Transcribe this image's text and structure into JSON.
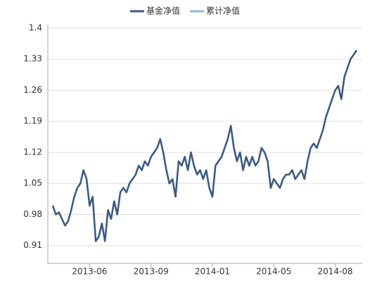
{
  "chart_data": {
    "type": "line",
    "categories": [
      null,
      null,
      null,
      null,
      null,
      null,
      null,
      null,
      null,
      null,
      null,
      null,
      "2013-06",
      null,
      null,
      null,
      null,
      null,
      null,
      null,
      null,
      null,
      null,
      null,
      null,
      null,
      null,
      null,
      null,
      null,
      null,
      null,
      "2013-09",
      null,
      null,
      null,
      null,
      null,
      null,
      null,
      null,
      null,
      null,
      null,
      null,
      null,
      null,
      null,
      null,
      null,
      null,
      null,
      "2014-01",
      null,
      null,
      null,
      null,
      null,
      null,
      null,
      null,
      null,
      null,
      null,
      null,
      null,
      null,
      null,
      null,
      null,
      null,
      null,
      "2014-05",
      null,
      null,
      null,
      null,
      null,
      null,
      null,
      null,
      null,
      null,
      null,
      null,
      null,
      null,
      null,
      null,
      null,
      null,
      null,
      "2014-08",
      null,
      null,
      null,
      null,
      null,
      null,
      null
    ],
    "series": [
      {
        "name": "累计净值",
        "color": "#8fb8de",
        "values": [
          1.0,
          0.98,
          0.985,
          0.97,
          0.955,
          0.965,
          0.99,
          1.02,
          1.04,
          1.05,
          1.08,
          1.06,
          1.0,
          1.02,
          0.92,
          0.93,
          0.96,
          0.92,
          0.99,
          0.97,
          1.01,
          0.98,
          1.03,
          1.04,
          1.03,
          1.05,
          1.06,
          1.07,
          1.09,
          1.08,
          1.1,
          1.09,
          1.11,
          1.12,
          1.13,
          1.15,
          1.12,
          1.08,
          1.05,
          1.06,
          1.02,
          1.1,
          1.09,
          1.11,
          1.08,
          1.12,
          1.09,
          1.07,
          1.08,
          1.06,
          1.08,
          1.04,
          1.02,
          1.09,
          1.1,
          1.11,
          1.13,
          1.15,
          1.18,
          1.13,
          1.1,
          1.12,
          1.08,
          1.11,
          1.09,
          1.11,
          1.09,
          1.1,
          1.13,
          1.12,
          1.1,
          1.04,
          1.06,
          1.05,
          1.04,
          1.06,
          1.07,
          1.07,
          1.08,
          1.06,
          1.07,
          1.08,
          1.06,
          1.1,
          1.13,
          1.14,
          1.13,
          1.15,
          1.17,
          1.2,
          1.22,
          1.24,
          1.26,
          1.27,
          1.24,
          1.29,
          1.31,
          1.33,
          1.34,
          1.35
        ]
      },
      {
        "name": "基金净值",
        "color": "#3d5a80",
        "values": [
          1.0,
          0.98,
          0.985,
          0.97,
          0.955,
          0.965,
          0.99,
          1.02,
          1.04,
          1.05,
          1.08,
          1.06,
          1.0,
          1.02,
          0.92,
          0.93,
          0.96,
          0.92,
          0.99,
          0.97,
          1.01,
          0.98,
          1.03,
          1.04,
          1.03,
          1.05,
          1.06,
          1.07,
          1.09,
          1.08,
          1.1,
          1.09,
          1.11,
          1.12,
          1.13,
          1.15,
          1.12,
          1.08,
          1.05,
          1.06,
          1.02,
          1.1,
          1.09,
          1.11,
          1.08,
          1.12,
          1.09,
          1.07,
          1.08,
          1.06,
          1.08,
          1.04,
          1.02,
          1.09,
          1.1,
          1.11,
          1.13,
          1.15,
          1.18,
          1.13,
          1.1,
          1.12,
          1.08,
          1.11,
          1.09,
          1.11,
          1.09,
          1.1,
          1.13,
          1.12,
          1.1,
          1.04,
          1.06,
          1.05,
          1.04,
          1.06,
          1.07,
          1.07,
          1.08,
          1.06,
          1.07,
          1.08,
          1.06,
          1.1,
          1.13,
          1.14,
          1.13,
          1.15,
          1.17,
          1.2,
          1.22,
          1.24,
          1.26,
          1.27,
          1.24,
          1.29,
          1.31,
          1.33,
          1.34,
          1.35
        ]
      }
    ],
    "ylim": [
      0.87,
      1.4
    ],
    "yticks": [
      0.91,
      0.98,
      1.05,
      1.12,
      1.19,
      1.26,
      1.33,
      1.4
    ],
    "grid": true
  }
}
